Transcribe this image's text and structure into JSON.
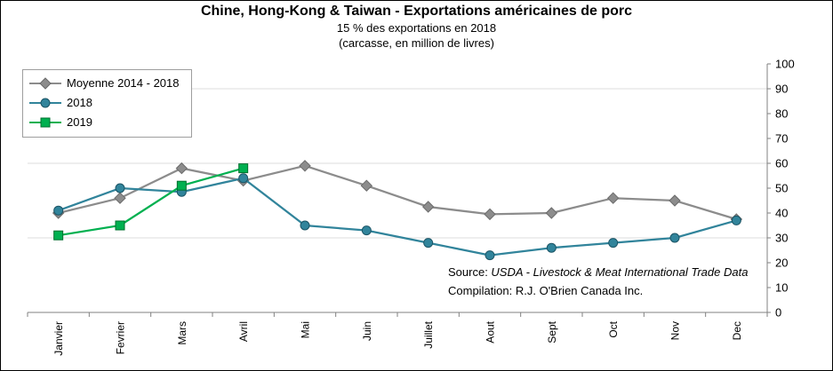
{
  "header": {
    "title": "Chine, Hong-Kong & Taiwan - Exportations américaines de porc",
    "subtitle": "15 % des exportations en 2018",
    "subtitle2": "(carcasse, en million de livres)"
  },
  "footer": {
    "source_prefix": "Source: ",
    "source_italic": "USDA - Livestock & Meat International Trade Data",
    "compilation": "Compilation: R.J. O'Brien Canada Inc."
  },
  "chart_data": {
    "type": "line",
    "categories": [
      "Janvier",
      "Fevrier",
      "Mars",
      "Avril",
      "Mai",
      "Juin",
      "Juillet",
      "Aout",
      "Sept",
      "Oct",
      "Nov",
      "Dec"
    ],
    "series": [
      {
        "name": "Moyenne 2014 - 2018",
        "color": "#8C8C8C",
        "marker": "diamond",
        "marker_stroke": "#6B6B6B",
        "values": [
          40,
          46,
          58,
          53,
          59,
          51,
          42.5,
          39.5,
          40,
          46,
          45,
          37.5
        ]
      },
      {
        "name": "2018",
        "color": "#31849B",
        "marker": "circle",
        "marker_stroke": "#1C5566",
        "values": [
          41,
          50,
          48.5,
          54,
          35,
          33,
          28,
          23,
          26,
          28,
          30,
          37
        ]
      },
      {
        "name": "2019",
        "color": "#00B050",
        "marker": "square",
        "marker_stroke": "#00702F",
        "values": [
          31,
          35,
          51,
          58,
          null,
          null,
          null,
          null,
          null,
          null,
          null,
          null
        ]
      }
    ],
    "ylim": [
      0,
      100
    ],
    "ytick_step": 10,
    "grid_values": [
      30,
      60,
      90
    ],
    "yaxis_side": "right",
    "legend_position": "top-left"
  }
}
